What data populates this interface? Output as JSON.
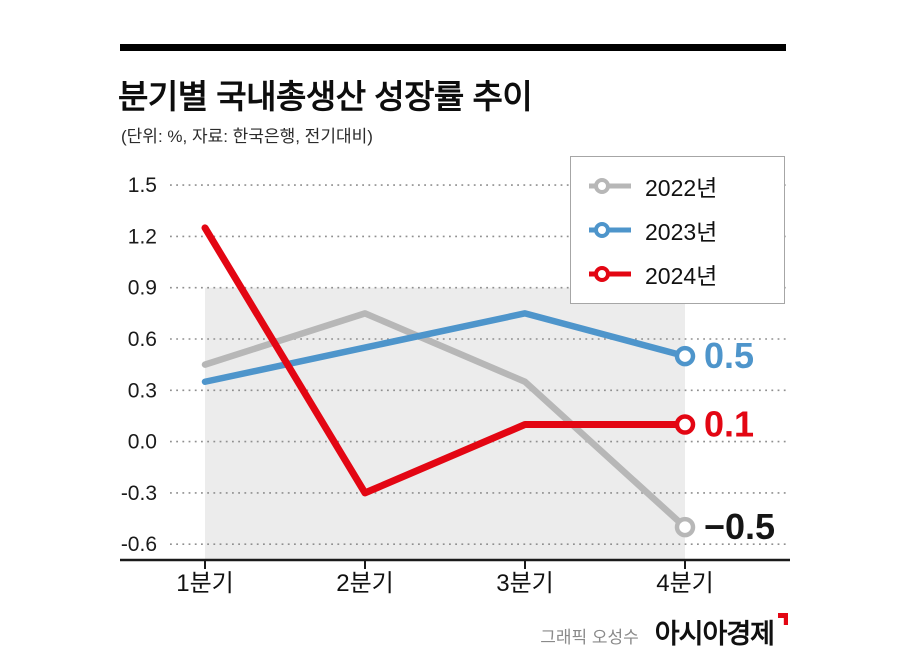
{
  "header": {
    "title": "분기별 국내총생산 성장률 추이",
    "subtitle": "(단위: %, 자료: 한국은행, 전기대비)"
  },
  "footer": {
    "credit": "그래픽 오성수",
    "logo": "아시아경제"
  },
  "colors": {
    "series_2022": "#b7b7b7",
    "series_2023": "#4e95cb",
    "series_2024": "#e30613",
    "band": "#ececec",
    "grid": "#8f8f8f",
    "axis": "#1a1a1a",
    "end_label_dark": "#151515"
  },
  "chart_data": {
    "type": "line",
    "title": "분기별 국내총생산 성장률 추이",
    "subtitle": "(단위: %, 자료: 한국은행, 전기대비)",
    "categories": [
      "1분기",
      "2분기",
      "3분기",
      "4분기"
    ],
    "series": [
      {
        "name": "2022년",
        "color": "#b7b7b7",
        "values": [
          0.45,
          0.75,
          0.35,
          -0.5
        ],
        "end_label": "−0.5",
        "end_label_color": "#151515"
      },
      {
        "name": "2023년",
        "color": "#4e95cb",
        "values": [
          0.35,
          0.55,
          0.75,
          0.5
        ],
        "end_label": "0.5",
        "end_label_color": "#4e95cb"
      },
      {
        "name": "2024년",
        "color": "#e30613",
        "values": [
          1.25,
          -0.3,
          0.1,
          0.1
        ],
        "end_label": "0.1",
        "end_label_color": "#e30613"
      }
    ],
    "y_ticks": [
      "1.5",
      "1.2",
      "0.9",
      "0.6",
      "0.3",
      "0.0",
      "-0.3",
      "-0.6"
    ],
    "ylim": [
      -0.6,
      1.5
    ],
    "grid": "dotted-horizontal",
    "legend_position": "top-right",
    "unit": "%"
  }
}
